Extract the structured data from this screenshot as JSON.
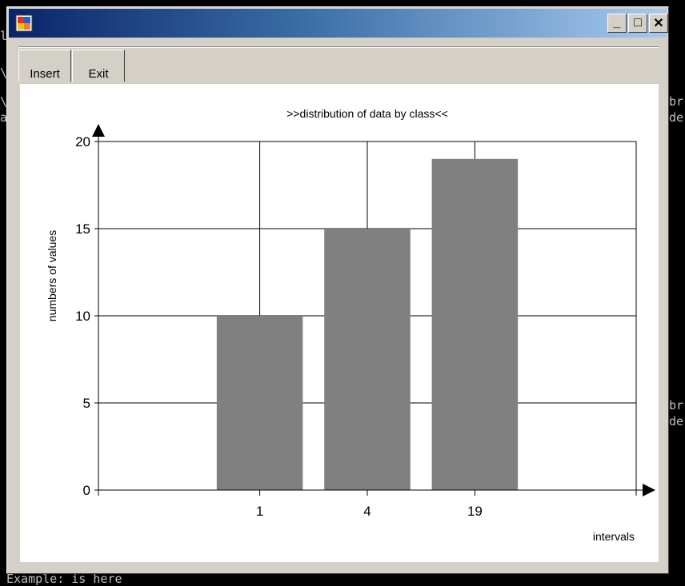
{
  "window": {
    "minimize_label": "_",
    "maximize_label": "□",
    "close_label": "✕"
  },
  "toolbar": {
    "insert_label": "Insert",
    "exit_label": "Exit"
  },
  "console": {
    "bottom_text": "Example: is here"
  },
  "chart_data": {
    "type": "bar",
    "title": ">>distribution of data by class<<",
    "xlabel": "intervals",
    "ylabel": "numbers of values",
    "categories": [
      "1",
      "4",
      "19"
    ],
    "values": [
      10,
      15,
      19
    ],
    "ylim": [
      0,
      20
    ],
    "yticks": [
      0,
      5,
      10,
      15,
      20
    ],
    "grid": true,
    "bar_color": "#808080",
    "legend": "none"
  }
}
